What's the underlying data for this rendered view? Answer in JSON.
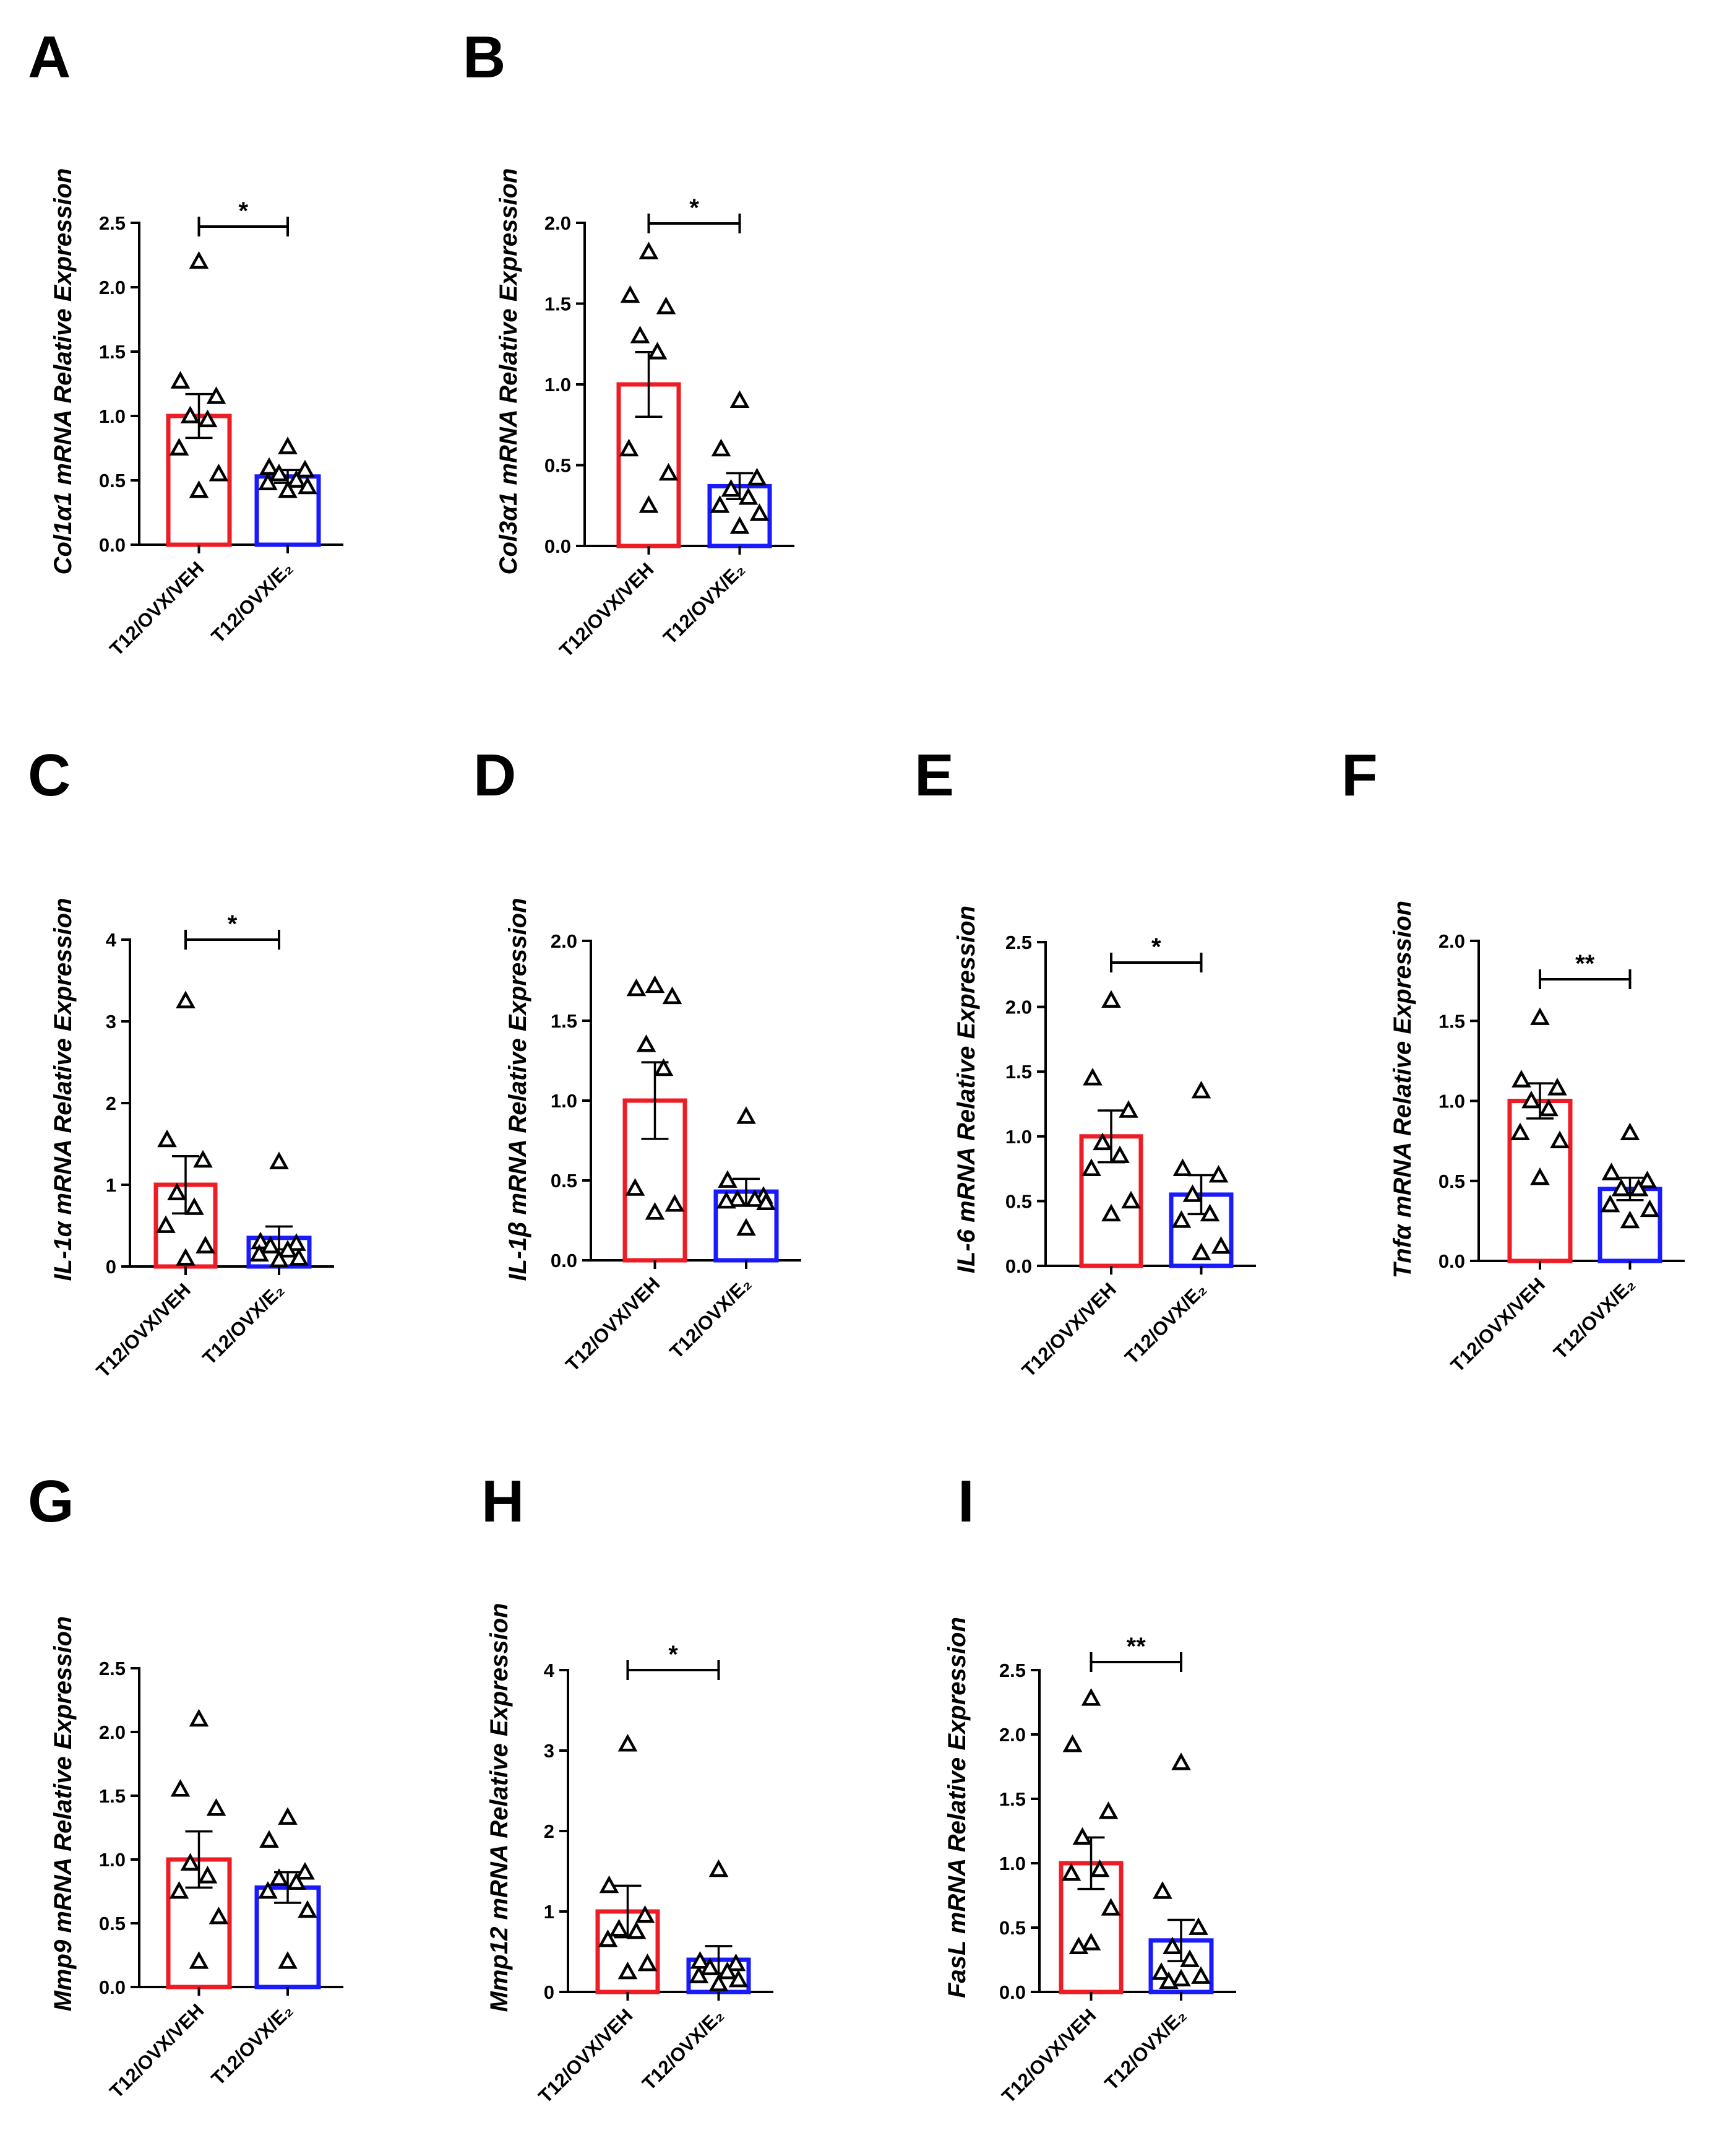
{
  "figure": {
    "colors": {
      "veh": "#ee1c24",
      "e2": "#1a1aff",
      "axis": "#000000"
    }
  },
  "chart_data": [
    {
      "panel": "A",
      "type": "bar",
      "ylabel": "Col1α1 mRNA Relative Expression",
      "categories": [
        "T12/OVX/VEH",
        "T12/OVX/E₂"
      ],
      "yticks": [
        "0.0",
        "0.5",
        "1.0",
        "1.5",
        "2.0",
        "2.5"
      ],
      "ylim": [
        0,
        2.5
      ],
      "series": [
        {
          "name": "T12/OVX/VEH",
          "mean": 1.0,
          "sem": 0.17,
          "points": [
            2.2,
            1.27,
            1.15,
            1.0,
            0.97,
            0.75,
            0.55,
            0.42
          ]
        },
        {
          "name": "T12/OVX/E₂",
          "mean": 0.53,
          "sem": 0.05,
          "points": [
            0.76,
            0.6,
            0.58,
            0.55,
            0.5,
            0.48,
            0.45,
            0.42
          ]
        }
      ],
      "significance": "*"
    },
    {
      "panel": "B",
      "type": "bar",
      "ylabel": "Col3α1 mRNA Relative Expression",
      "categories": [
        "T12/OVX/VEH",
        "T12/OVX/E₂"
      ],
      "yticks": [
        "0.0",
        "0.5",
        "1.0",
        "1.5",
        "2.0"
      ],
      "ylim": [
        0,
        2.0
      ],
      "series": [
        {
          "name": "T12/OVX/VEH",
          "mean": 1.0,
          "sem": 0.2,
          "points": [
            1.82,
            1.55,
            1.48,
            1.3,
            1.2,
            0.6,
            0.45,
            0.25
          ]
        },
        {
          "name": "T12/OVX/E₂",
          "mean": 0.37,
          "sem": 0.08,
          "points": [
            0.9,
            0.6,
            0.42,
            0.35,
            0.3,
            0.25,
            0.2,
            0.12
          ]
        }
      ],
      "significance": "*"
    },
    {
      "panel": "C",
      "type": "bar",
      "ylabel": "IL-1α mRNA Relative Expression",
      "categories": [
        "T12/OVX/VEH",
        "T12/OVX/E₂"
      ],
      "yticks": [
        "0",
        "1",
        "2",
        "3",
        "4"
      ],
      "ylim": [
        0,
        4
      ],
      "series": [
        {
          "name": "T12/OVX/VEH",
          "mean": 1.0,
          "sem": 0.35,
          "points": [
            3.25,
            1.55,
            1.3,
            0.9,
            0.72,
            0.5,
            0.25,
            0.1
          ]
        },
        {
          "name": "T12/OVX/E₂",
          "mean": 0.35,
          "sem": 0.14,
          "points": [
            1.28,
            0.3,
            0.28,
            0.25,
            0.2,
            0.15,
            0.1,
            0.08
          ]
        }
      ],
      "significance": "*"
    },
    {
      "panel": "D",
      "type": "bar",
      "ylabel": "IL-1β mRNA Relative Expression",
      "categories": [
        "T12/OVX/VEH",
        "T12/OVX/E₂"
      ],
      "yticks": [
        "0.0",
        "0.5",
        "1.0",
        "1.5",
        "2.0"
      ],
      "ylim": [
        0,
        2.0
      ],
      "series": [
        {
          "name": "T12/OVX/VEH",
          "mean": 1.0,
          "sem": 0.24,
          "points": [
            1.72,
            1.7,
            1.65,
            1.35,
            1.2,
            0.45,
            0.35,
            0.3
          ]
        },
        {
          "name": "T12/OVX/E₂",
          "mean": 0.43,
          "sem": 0.08,
          "points": [
            0.9,
            0.5,
            0.4,
            0.38,
            0.38,
            0.37,
            0.36,
            0.2
          ]
        }
      ]
    },
    {
      "panel": "E",
      "type": "bar",
      "ylabel": "IL-6 mRNA Relative Expression",
      "categories": [
        "T12/OVX/VEH",
        "T12/OVX/E₂"
      ],
      "yticks": [
        "0.0",
        "0.5",
        "1.0",
        "1.5",
        "2.0",
        "2.5"
      ],
      "ylim": [
        0,
        2.5
      ],
      "series": [
        {
          "name": "T12/OVX/VEH",
          "mean": 1.0,
          "sem": 0.2,
          "points": [
            2.05,
            1.45,
            1.2,
            0.95,
            0.85,
            0.75,
            0.5,
            0.4
          ]
        },
        {
          "name": "T12/OVX/E₂",
          "mean": 0.55,
          "sem": 0.15,
          "points": [
            1.35,
            0.75,
            0.7,
            0.55,
            0.4,
            0.35,
            0.15,
            0.1
          ]
        }
      ],
      "significance": "*"
    },
    {
      "panel": "F",
      "type": "bar",
      "ylabel": "Tnfα mRNA Relative Expression",
      "categories": [
        "T12/OVX/VEH",
        "T12/OVX/E₂"
      ],
      "yticks": [
        "0.0",
        "0.5",
        "1.0",
        "1.5",
        "2.0"
      ],
      "ylim": [
        0,
        2.0
      ],
      "series": [
        {
          "name": "T12/OVX/VEH",
          "mean": 1.0,
          "sem": 0.11,
          "points": [
            1.52,
            1.13,
            1.08,
            1.0,
            0.95,
            0.8,
            0.75,
            0.52
          ]
        },
        {
          "name": "T12/OVX/E₂",
          "mean": 0.45,
          "sem": 0.07,
          "points": [
            0.8,
            0.55,
            0.5,
            0.45,
            0.45,
            0.35,
            0.32,
            0.25
          ]
        }
      ],
      "significance": "**"
    },
    {
      "panel": "G",
      "type": "bar",
      "ylabel": "Mmp9 mRNA Relative Expression",
      "categories": [
        "T12/OVX/VEH",
        "T12/OVX/E₂"
      ],
      "yticks": [
        "0.0",
        "0.5",
        "1.0",
        "1.5",
        "2.0",
        "2.5"
      ],
      "ylim": [
        0,
        2.5
      ],
      "series": [
        {
          "name": "T12/OVX/VEH",
          "mean": 1.0,
          "sem": 0.22,
          "points": [
            2.1,
            1.55,
            1.4,
            0.97,
            0.87,
            0.75,
            0.55,
            0.2
          ]
        },
        {
          "name": "T12/OVX/E₂",
          "mean": 0.78,
          "sem": 0.12,
          "points": [
            1.33,
            1.15,
            0.9,
            0.85,
            0.82,
            0.75,
            0.6,
            0.2
          ]
        }
      ]
    },
    {
      "panel": "H",
      "type": "bar",
      "ylabel": "Mmp12 mRNA Relative Expression",
      "categories": [
        "T12/OVX/VEH",
        "T12/OVX/E₂"
      ],
      "yticks": [
        "0",
        "1",
        "2",
        "3",
        "4"
      ],
      "ylim": [
        0,
        4
      ],
      "series": [
        {
          "name": "T12/OVX/VEH",
          "mean": 1.0,
          "sem": 0.32,
          "points": [
            3.08,
            1.32,
            0.95,
            0.78,
            0.75,
            0.65,
            0.35,
            0.25
          ]
        },
        {
          "name": "T12/OVX/E₂",
          "mean": 0.4,
          "sem": 0.17,
          "points": [
            1.52,
            0.38,
            0.35,
            0.3,
            0.25,
            0.2,
            0.15,
            0.1
          ]
        }
      ],
      "significance": "*"
    },
    {
      "panel": "I",
      "type": "bar",
      "ylabel": "FasL mRNA Relative Expression",
      "categories": [
        "T12/OVX/VEH",
        "T12/OVX/E₂"
      ],
      "yticks": [
        "0.0",
        "0.5",
        "1.0",
        "1.5",
        "2.0",
        "2.5"
      ],
      "ylim": [
        0,
        2.5
      ],
      "series": [
        {
          "name": "T12/OVX/VEH",
          "mean": 1.0,
          "sem": 0.2,
          "points": [
            2.28,
            1.92,
            1.4,
            1.2,
            0.95,
            0.92,
            0.65,
            0.38,
            0.35
          ]
        },
        {
          "name": "T12/OVX/E₂",
          "mean": 0.4,
          "sem": 0.16,
          "points": [
            1.78,
            0.78,
            0.5,
            0.35,
            0.25,
            0.15,
            0.12,
            0.1,
            0.08
          ]
        }
      ],
      "significance": "**"
    }
  ]
}
